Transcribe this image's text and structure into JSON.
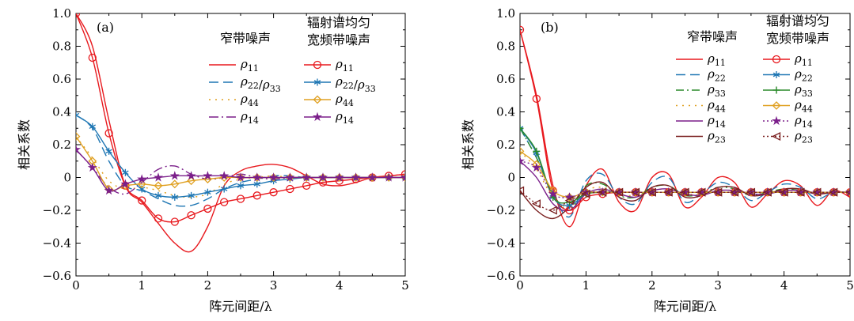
{
  "chart_data": [
    {
      "type": "line",
      "panel_label": "(a)",
      "xlabel": "阵元间距/λ",
      "ylabel": "相关系数",
      "xlim": [
        0,
        5
      ],
      "ylim": [
        -0.6,
        1.0
      ],
      "x_ticks": [
        0,
        1,
        2,
        3,
        4,
        5
      ],
      "y_ticks": [
        -0.6,
        -0.4,
        -0.2,
        0,
        0.2,
        0.4,
        0.6,
        0.8,
        1.0
      ],
      "y_tick_labels": [
        "−0.6",
        "−0.4",
        "−0.2",
        "0",
        "0.2",
        "0.4",
        "0.6",
        "0.8",
        "1.0"
      ],
      "grid": false,
      "legend_placement": "top-right",
      "legend_groups": [
        "窄带噪声",
        "辐射谱均匀宽频带噪声"
      ],
      "x": [
        0,
        0.25,
        0.5,
        0.75,
        1.0,
        1.25,
        1.5,
        1.75,
        2.0,
        2.25,
        2.5,
        2.75,
        3.0,
        3.25,
        3.5,
        3.75,
        4.0,
        4.25,
        4.5,
        4.75,
        5.0
      ],
      "series": [
        {
          "name": "ρ11",
          "group": "窄带噪声",
          "color": "#e8191e",
          "dash": "solid",
          "marker": "none",
          "values": [
            1.0,
            0.8,
            0.35,
            -0.05,
            -0.15,
            -0.28,
            -0.4,
            -0.45,
            -0.3,
            -0.05,
            0.04,
            0.07,
            0.08,
            0.06,
            0.01,
            -0.04,
            -0.05,
            -0.03,
            0.0,
            0.01,
            0.02
          ]
        },
        {
          "name": "ρ22/ρ33",
          "group": "窄带噪声",
          "color": "#1f77b4",
          "dash": "12,6",
          "marker": "none",
          "values": [
            0.38,
            0.3,
            0.1,
            -0.05,
            -0.08,
            -0.13,
            -0.17,
            -0.17,
            -0.13,
            -0.07,
            -0.03,
            -0.01,
            0.01,
            0.01,
            0.0,
            0.0,
            0.0,
            0.0,
            0.0,
            0.0,
            0.0
          ]
        },
        {
          "name": "ρ44",
          "group": "窄带噪声",
          "color": "#e0a020",
          "dash": "2,6",
          "marker": "none",
          "values": [
            0.25,
            0.12,
            -0.02,
            -0.07,
            -0.06,
            -0.08,
            -0.11,
            -0.12,
            -0.1,
            -0.04,
            -0.01,
            0.0,
            0.01,
            0.0,
            0.0,
            0.0,
            0.0,
            0.0,
            0.0,
            0.0,
            0.0
          ]
        },
        {
          "name": "ρ14",
          "group": "窄带噪声",
          "color": "#7b1f8a",
          "dash": "12,4,2,4",
          "marker": "none",
          "values": [
            0.17,
            0.06,
            -0.06,
            -0.1,
            -0.03,
            0.05,
            0.07,
            0.02,
            -0.01,
            0.0,
            0.02,
            0.0,
            -0.01,
            0.0,
            0.0,
            0.0,
            0.0,
            0.0,
            0.0,
            0.0,
            0.0
          ]
        },
        {
          "name": "ρ11",
          "group": "辐射谱均匀宽频带噪声",
          "color": "#e8191e",
          "dash": "solid",
          "marker": "circle",
          "values": [
            1.0,
            0.73,
            0.27,
            -0.05,
            -0.14,
            -0.25,
            -0.27,
            -0.23,
            -0.19,
            -0.15,
            -0.13,
            -0.11,
            -0.09,
            -0.07,
            -0.05,
            -0.03,
            -0.02,
            -0.01,
            0.0,
            0.01,
            0.02
          ]
        },
        {
          "name": "ρ22/ρ33",
          "group": "辐射谱均匀宽频带噪声",
          "color": "#1f77b4",
          "dash": "solid",
          "marker": "asterisk",
          "values": [
            0.38,
            0.31,
            0.16,
            0.03,
            -0.07,
            -0.11,
            -0.12,
            -0.11,
            -0.09,
            -0.07,
            -0.05,
            -0.04,
            -0.02,
            -0.01,
            0.0,
            0.0,
            0.0,
            0.0,
            0.0,
            0.0,
            0.0
          ]
        },
        {
          "name": "ρ44",
          "group": "辐射谱均匀宽频带噪声",
          "color": "#e0a020",
          "dash": "solid",
          "marker": "diamond",
          "values": [
            0.25,
            0.1,
            -0.07,
            -0.05,
            -0.04,
            -0.05,
            -0.04,
            -0.02,
            -0.01,
            0.0,
            0.0,
            0.0,
            0.0,
            0.0,
            0.0,
            0.0,
            0.0,
            0.0,
            0.0,
            0.0,
            0.0
          ]
        },
        {
          "name": "ρ14",
          "group": "辐射谱均匀宽频带噪声",
          "color": "#7b1f8a",
          "dash": "solid",
          "marker": "star",
          "values": [
            0.17,
            0.06,
            -0.08,
            -0.04,
            -0.01,
            0.0,
            0.01,
            0.01,
            0.01,
            0.01,
            0.0,
            0.0,
            0.0,
            0.0,
            0.0,
            0.0,
            0.0,
            0.0,
            0.0,
            0.0,
            0.0
          ]
        }
      ]
    },
    {
      "type": "line",
      "panel_label": "(b)",
      "xlabel": "阵元间距/λ",
      "ylabel": "相关系数",
      "xlim": [
        0,
        5
      ],
      "ylim": [
        -0.6,
        1.0
      ],
      "x_ticks": [
        0,
        1,
        2,
        3,
        4,
        5
      ],
      "y_ticks": [
        -0.6,
        -0.4,
        -0.2,
        0,
        0.2,
        0.4,
        0.6,
        0.8,
        1.0
      ],
      "y_tick_labels": [
        "−0.6",
        "−0.4",
        "−0.2",
        "0",
        "0.2",
        "0.4",
        "0.6",
        "0.8",
        "1.0"
      ],
      "grid": false,
      "legend_placement": "top-right",
      "legend_groups": [
        "窄带噪声",
        "辐射谱均匀宽频带噪声"
      ],
      "x": [
        0,
        0.25,
        0.5,
        0.75,
        1.0,
        1.25,
        1.5,
        1.75,
        2.0,
        2.25,
        2.5,
        2.75,
        3.0,
        3.25,
        3.5,
        3.75,
        4.0,
        4.25,
        4.5,
        4.75,
        5.0
      ],
      "series": [
        {
          "name": "ρ11",
          "group": "窄带噪声",
          "color": "#e8191e",
          "dash": "solid",
          "marker": "none",
          "values": [
            0.9,
            0.5,
            -0.05,
            -0.3,
            -0.05,
            0.05,
            -0.15,
            -0.2,
            0.0,
            0.02,
            -0.18,
            -0.12,
            0.0,
            -0.03,
            -0.18,
            -0.1,
            -0.02,
            -0.05,
            -0.17,
            -0.08,
            -0.12
          ]
        },
        {
          "name": "ρ22",
          "group": "窄带噪声",
          "color": "#1f77b4",
          "dash": "12,6",
          "marker": "none",
          "values": [
            0.3,
            0.12,
            -0.1,
            -0.24,
            -0.02,
            0.02,
            -0.12,
            -0.16,
            -0.03,
            0.0,
            -0.15,
            -0.1,
            -0.03,
            -0.06,
            -0.14,
            -0.09,
            -0.04,
            -0.06,
            -0.13,
            -0.09,
            -0.1
          ]
        },
        {
          "name": "ρ33",
          "group": "窄带噪声",
          "color": "#2a8a2a",
          "dash": "10,4,2,4",
          "marker": "none",
          "values": [
            0.3,
            0.12,
            -0.1,
            -0.2,
            -0.05,
            -0.04,
            -0.11,
            -0.12,
            -0.06,
            -0.05,
            -0.11,
            -0.1,
            -0.06,
            -0.07,
            -0.11,
            -0.09,
            -0.07,
            -0.08,
            -0.1,
            -0.09,
            -0.09
          ]
        },
        {
          "name": "ρ44",
          "group": "窄带噪声",
          "color": "#e0a020",
          "dash": "2,6",
          "marker": "none",
          "values": [
            0.16,
            0.05,
            -0.12,
            -0.18,
            -0.08,
            -0.06,
            -0.1,
            -0.11,
            -0.08,
            -0.07,
            -0.1,
            -0.1,
            -0.08,
            -0.08,
            -0.1,
            -0.09,
            -0.08,
            -0.08,
            -0.1,
            -0.09,
            -0.09
          ]
        },
        {
          "name": "ρ14",
          "group": "窄带噪声",
          "color": "#7b1f8a",
          "dash": "solid",
          "marker": "none",
          "values": [
            0.1,
            0.0,
            -0.16,
            -0.2,
            -0.1,
            -0.07,
            -0.1,
            -0.12,
            -0.08,
            -0.07,
            -0.1,
            -0.11,
            -0.08,
            -0.08,
            -0.1,
            -0.1,
            -0.08,
            -0.08,
            -0.1,
            -0.09,
            -0.09
          ]
        },
        {
          "name": "ρ23",
          "group": "窄带噪声",
          "color": "#7a1f1f",
          "dash": "solid",
          "marker": "none",
          "values": [
            -0.08,
            -0.2,
            -0.25,
            -0.18,
            -0.06,
            -0.03,
            -0.12,
            -0.14,
            -0.06,
            -0.05,
            -0.12,
            -0.11,
            -0.06,
            -0.06,
            -0.11,
            -0.1,
            -0.07,
            -0.07,
            -0.1,
            -0.09,
            -0.09
          ]
        },
        {
          "name": "ρ11",
          "group": "辐射谱均匀宽频带噪声",
          "color": "#e8191e",
          "dash": "solid",
          "marker": "circle",
          "values": [
            0.9,
            0.48,
            -0.08,
            -0.2,
            -0.12,
            -0.1,
            -0.09,
            -0.09,
            -0.09,
            -0.09,
            -0.09,
            -0.09,
            -0.09,
            -0.09,
            -0.09,
            -0.09,
            -0.09,
            -0.09,
            -0.09,
            -0.09,
            -0.09
          ]
        },
        {
          "name": "ρ22",
          "group": "辐射谱均匀宽频带噪声",
          "color": "#1f77b4",
          "dash": "solid",
          "marker": "asterisk",
          "values": [
            0.3,
            0.15,
            -0.12,
            -0.17,
            -0.1,
            -0.09,
            -0.09,
            -0.09,
            -0.09,
            -0.09,
            -0.09,
            -0.09,
            -0.09,
            -0.09,
            -0.09,
            -0.09,
            -0.09,
            -0.09,
            -0.09,
            -0.09,
            -0.09
          ]
        },
        {
          "name": "ρ33",
          "group": "辐射谱均匀宽频带噪声",
          "color": "#2a8a2a",
          "dash": "solid",
          "marker": "plus",
          "values": [
            0.3,
            0.16,
            -0.12,
            -0.15,
            -0.1,
            -0.09,
            -0.09,
            -0.09,
            -0.09,
            -0.09,
            -0.09,
            -0.09,
            -0.09,
            -0.09,
            -0.09,
            -0.09,
            -0.09,
            -0.09,
            -0.09,
            -0.09,
            -0.09
          ]
        },
        {
          "name": "ρ44",
          "group": "辐射谱均匀宽频带噪声",
          "color": "#e0a020",
          "dash": "solid",
          "marker": "diamond",
          "values": [
            0.16,
            0.08,
            -0.08,
            -0.12,
            -0.09,
            -0.09,
            -0.09,
            -0.09,
            -0.09,
            -0.09,
            -0.09,
            -0.09,
            -0.09,
            -0.09,
            -0.09,
            -0.09,
            -0.09,
            -0.09,
            -0.09,
            -0.09,
            -0.09
          ]
        },
        {
          "name": "ρ14",
          "group": "辐射谱均匀宽频带噪声",
          "color": "#7b1f8a",
          "dash": "2,3",
          "marker": "star",
          "values": [
            0.1,
            0.06,
            -0.1,
            -0.12,
            -0.09,
            -0.09,
            -0.09,
            -0.09,
            -0.09,
            -0.09,
            -0.09,
            -0.09,
            -0.09,
            -0.09,
            -0.09,
            -0.09,
            -0.09,
            -0.09,
            -0.09,
            -0.09,
            -0.09
          ]
        },
        {
          "name": "ρ23",
          "group": "辐射谱均匀宽频带噪声",
          "color": "#7a1f1f",
          "dash": "2,3",
          "marker": "triangle",
          "values": [
            -0.08,
            -0.16,
            -0.2,
            -0.14,
            -0.1,
            -0.09,
            -0.09,
            -0.09,
            -0.09,
            -0.09,
            -0.09,
            -0.09,
            -0.09,
            -0.09,
            -0.09,
            -0.09,
            -0.09,
            -0.09,
            -0.09,
            -0.09,
            -0.09
          ]
        }
      ]
    }
  ]
}
